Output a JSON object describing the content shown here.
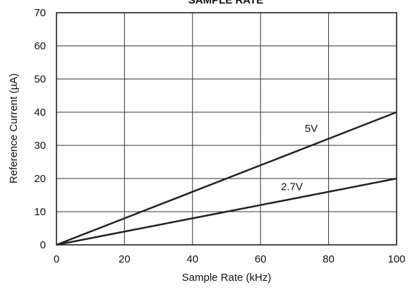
{
  "chart_data": {
    "type": "line",
    "title": "SAMPLE RATE",
    "xlabel": "Sample Rate (kHz)",
    "ylabel": "Reference Current (µA)",
    "xlim": [
      0,
      100
    ],
    "ylim": [
      0,
      70
    ],
    "xticks": [
      0,
      20,
      40,
      60,
      80,
      100
    ],
    "yticks": [
      0,
      10,
      20,
      30,
      40,
      50,
      60,
      70
    ],
    "grid": true,
    "series": [
      {
        "name": "5V",
        "color": "#222222",
        "x": [
          0,
          100
        ],
        "y": [
          0,
          40
        ],
        "label_at": [
          73,
          34
        ]
      },
      {
        "name": "2.7V",
        "color": "#222222",
        "x": [
          0,
          100
        ],
        "y": [
          0,
          20
        ],
        "label_at": [
          66,
          16.5
        ]
      }
    ]
  }
}
